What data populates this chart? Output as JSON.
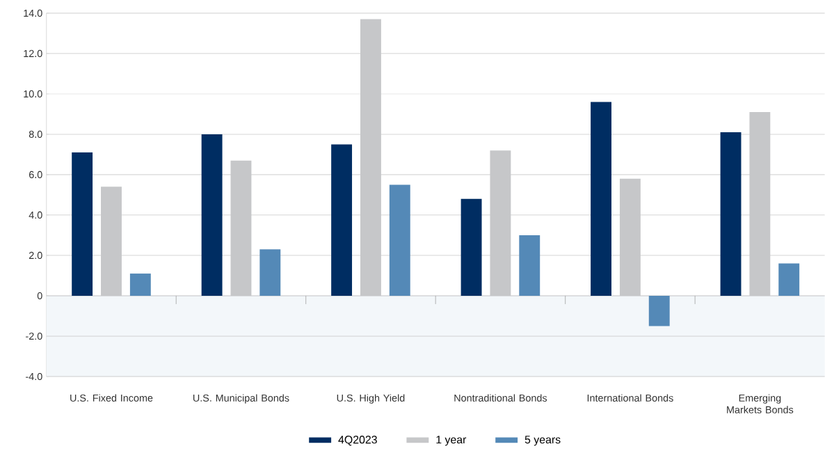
{
  "chart_data": {
    "type": "bar",
    "categories": [
      "U.S. Fixed Income",
      "U.S. Municipal Bonds",
      "U.S. High Yield",
      "Nontraditional Bonds",
      "International Bonds",
      "Emerging Markets Bonds"
    ],
    "series": [
      {
        "name": "4Q2023",
        "color": "#002d62",
        "values": [
          7.1,
          8.0,
          7.5,
          4.8,
          9.6,
          8.1
        ]
      },
      {
        "name": "1 year",
        "color": "#c6c7c9",
        "values": [
          5.4,
          6.7,
          13.7,
          7.2,
          5.8,
          9.1
        ]
      },
      {
        "name": "5 years",
        "color": "#5489b7",
        "values": [
          1.1,
          2.3,
          5.5,
          3.0,
          -1.5,
          1.6
        ]
      }
    ],
    "ylim": [
      -4,
      14
    ],
    "yticks": [
      {
        "value": -4,
        "label": "-4.0"
      },
      {
        "value": -2,
        "label": "-2.0"
      },
      {
        "value": 0,
        "label": "0"
      },
      {
        "value": 2,
        "label": "2.0"
      },
      {
        "value": 4,
        "label": "4.0"
      },
      {
        "value": 6,
        "label": "6.0"
      },
      {
        "value": 8,
        "label": "8.0"
      },
      {
        "value": 10,
        "label": "10.0"
      },
      {
        "value": 12,
        "label": "12.0"
      },
      {
        "value": 14,
        "label": "14.0"
      }
    ],
    "bands": [
      {
        "axis": "y",
        "from": -4,
        "to": 0,
        "color": "#f3f7fa"
      }
    ],
    "grid": "y",
    "legend": "bottom"
  }
}
